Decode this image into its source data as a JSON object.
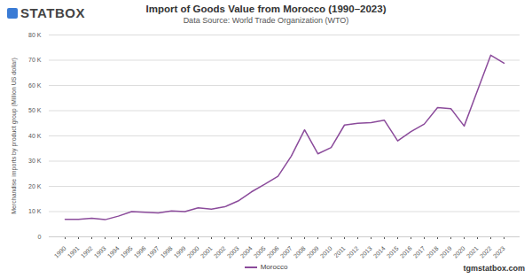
{
  "chart_data": {
    "type": "line",
    "title": "Import of Goods Value from Morocco (1990–2023)",
    "subtitle": "Data Source: World Trade Organization (WTO)",
    "y_label": "Merchandise imports by product group (Million US dollar)",
    "logo": "STATBOX",
    "credit": "tgmstatbox.com",
    "categories": [
      "1990",
      "1991",
      "1992",
      "1993",
      "1994",
      "1995",
      "1996",
      "1997",
      "1998",
      "1999",
      "2000",
      "2001",
      "2002",
      "2003",
      "2004",
      "2005",
      "2006",
      "2007",
      "2008",
      "2009",
      "2010",
      "2011",
      "2012",
      "2013",
      "2014",
      "2015",
      "2016",
      "2017",
      "2018",
      "2019",
      "2020",
      "2021",
      "2022",
      "2023"
    ],
    "series": [
      {
        "name": "Morocco",
        "color": "#8b4b9b",
        "values": [
          6900,
          6900,
          7400,
          6800,
          8200,
          10000,
          9700,
          9500,
          10300,
          10000,
          11500,
          11000,
          11900,
          14200,
          17800,
          20800,
          24000,
          32000,
          42400,
          32900,
          35400,
          44300,
          45000,
          45300,
          46200,
          38000,
          41700,
          44700,
          51200,
          50800,
          43900,
          58000,
          72000,
          68800
        ]
      }
    ],
    "ylim": [
      0,
      80000
    ],
    "yticks": [
      0,
      {
        "value": 10000,
        "label": "10 K"
      },
      {
        "value": 20000,
        "label": "20 K"
      },
      {
        "value": 30000,
        "label": "30 K"
      },
      {
        "value": 40000,
        "label": "40 K"
      },
      {
        "value": 50000,
        "label": "50 K"
      },
      {
        "value": 60000,
        "label": "60 K"
      },
      {
        "value": 70000,
        "label": "70 K"
      },
      {
        "value": 80000,
        "label": "80 K"
      }
    ],
    "grid": true,
    "legend": "bottom"
  }
}
